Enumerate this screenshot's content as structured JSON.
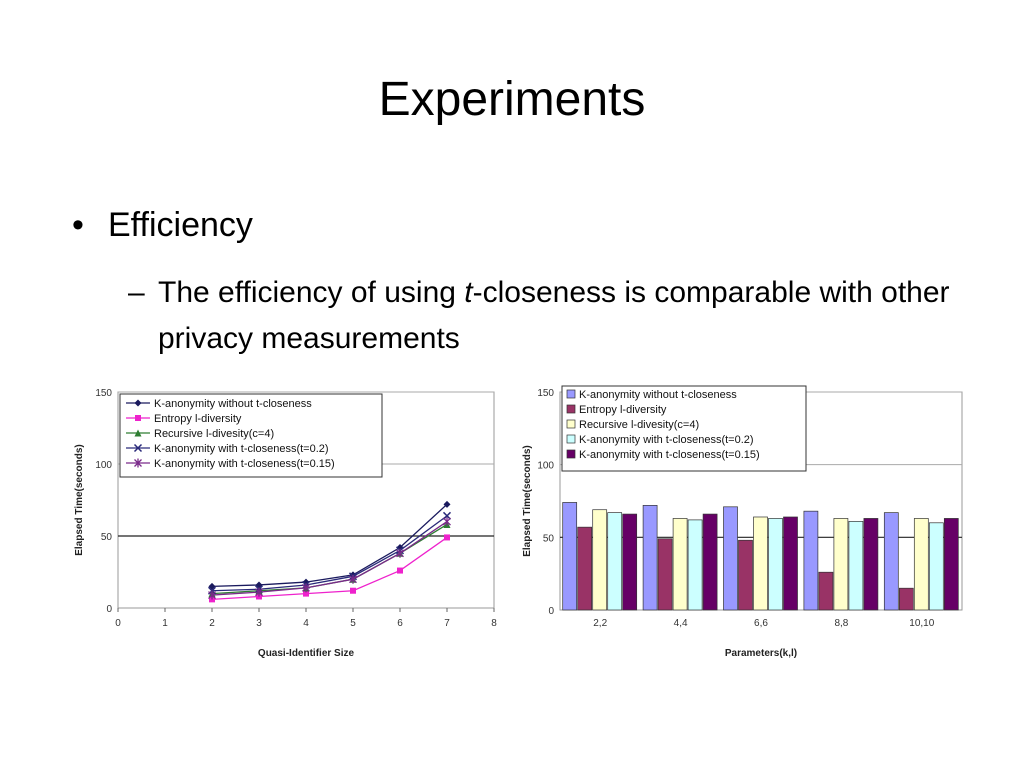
{
  "slide": {
    "title": "Experiments",
    "bullet": "Efficiency",
    "sub_before": "The efficiency of using ",
    "sub_italic": "t",
    "sub_after": "-closeness is comparable with other privacy measurements"
  },
  "chart_data": [
    {
      "type": "line",
      "xlabel": "Quasi-Identifier Size",
      "ylabel": "Elapsed Time(seconds)",
      "xlim": [
        0,
        8
      ],
      "ylim": [
        0,
        150
      ],
      "x_ticks": [
        "0",
        "1",
        "2",
        "3",
        "4",
        "5",
        "6",
        "7",
        "8"
      ],
      "y_ticks": [
        "0",
        "50",
        "100",
        "150"
      ],
      "legend_position": "top-left",
      "x": [
        2,
        3,
        4,
        5,
        6,
        7
      ],
      "series": [
        {
          "name": "K-anonymity without t-closeness",
          "color": "#1a1a5e",
          "marker": "diamond",
          "values": [
            15,
            16,
            18,
            23,
            42,
            72
          ]
        },
        {
          "name": "Entropy l-diversity",
          "color": "#ee22cc",
          "marker": "square",
          "values": [
            6,
            8,
            10,
            12,
            26,
            49
          ]
        },
        {
          "name": "Recursive l-divesity(c=4)",
          "color": "#2e7d32",
          "marker": "triangle",
          "values": [
            10,
            12,
            14,
            20,
            38,
            58
          ]
        },
        {
          "name": "K-anonymity with t-closeness(t=0.2)",
          "color": "#2a2a7a",
          "marker": "x",
          "values": [
            12,
            13,
            16,
            22,
            40,
            64
          ]
        },
        {
          "name": "K-anonymity with t-closeness(t=0.15)",
          "color": "#7a2a8a",
          "marker": "star",
          "values": [
            9,
            11,
            14,
            20,
            38,
            60
          ]
        }
      ]
    },
    {
      "type": "bar",
      "xlabel": "Parameters(k,l)",
      "ylabel": "Elapsed Time(seconds)",
      "ylim": [
        0,
        150
      ],
      "y_ticks": [
        "0",
        "50",
        "100",
        "150"
      ],
      "legend_position": "top-left",
      "categories": [
        "2,2",
        "4,4",
        "6,6",
        "8,8",
        "10,10"
      ],
      "series": [
        {
          "name": "K-anonymity without t-closeness",
          "color": "#9999ff",
          "values": [
            74,
            72,
            71,
            68,
            67
          ]
        },
        {
          "name": "Entropy l-diversity",
          "color": "#993366",
          "values": [
            57,
            49,
            48,
            26,
            15
          ]
        },
        {
          "name": "Recursive l-divesity(c=4)",
          "color": "#ffffcc",
          "values": [
            69,
            63,
            64,
            63,
            63
          ]
        },
        {
          "name": "K-anonymity with t-closeness(t=0.2)",
          "color": "#ccffff",
          "values": [
            67,
            62,
            63,
            61,
            60
          ]
        },
        {
          "name": "K-anonymity with t-closeness(t=0.15)",
          "color": "#660066",
          "values": [
            66,
            66,
            64,
            63,
            63
          ]
        }
      ]
    }
  ]
}
